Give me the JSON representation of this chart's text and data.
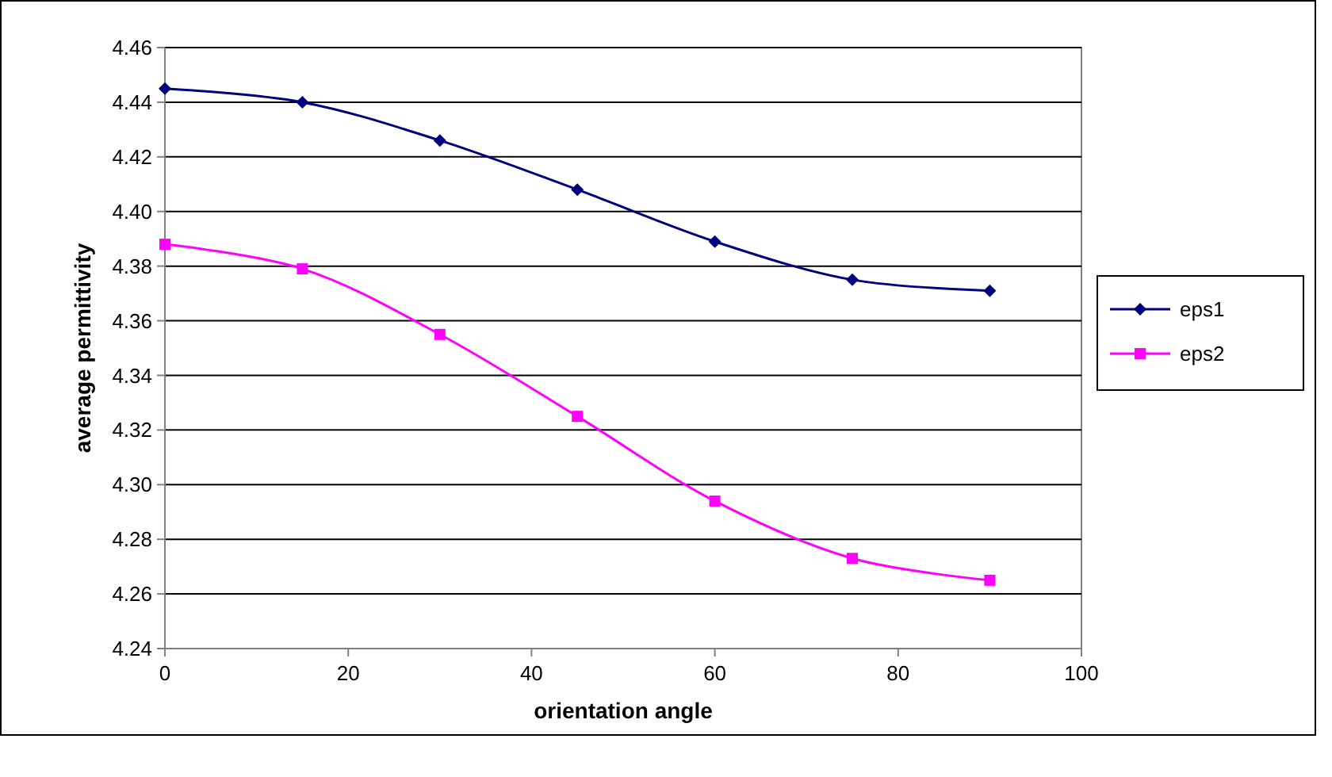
{
  "chart_data": {
    "type": "line",
    "xlabel": "orientation angle",
    "ylabel": "average permittivity",
    "x": [
      0,
      15,
      30,
      45,
      60,
      75,
      90
    ],
    "series": [
      {
        "name": "eps1",
        "color": "#000080",
        "marker": "diamond",
        "values": [
          4.445,
          4.44,
          4.426,
          4.408,
          4.389,
          4.375,
          4.371
        ]
      },
      {
        "name": "eps2",
        "color": "#ff00ff",
        "marker": "square",
        "values": [
          4.388,
          4.379,
          4.355,
          4.325,
          4.294,
          4.273,
          4.265
        ]
      }
    ],
    "xlim": [
      0,
      100
    ],
    "xticks": [
      0,
      20,
      40,
      60,
      80,
      100
    ],
    "ylim": [
      4.24,
      4.46
    ],
    "yticks": [
      {
        "value": 4.24,
        "label": "4.24"
      },
      {
        "value": 4.26,
        "label": "4.26"
      },
      {
        "value": 4.28,
        "label": "4.28"
      },
      {
        "value": 4.3,
        "label": "4.30"
      },
      {
        "value": 4.32,
        "label": "4.32"
      },
      {
        "value": 4.34,
        "label": "4.34"
      },
      {
        "value": 4.36,
        "label": "4.36"
      },
      {
        "value": 4.38,
        "label": "4.38"
      },
      {
        "value": 4.4,
        "label": "4.40"
      },
      {
        "value": 4.42,
        "label": "4.42"
      },
      {
        "value": 4.44,
        "label": "4.44"
      },
      {
        "value": 4.46,
        "label": "4.46"
      }
    ],
    "grid": "y",
    "legend": "right"
  }
}
